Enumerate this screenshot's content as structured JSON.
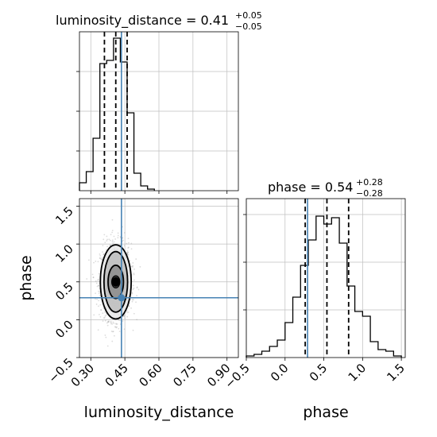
{
  "chart_data": [
    {
      "type": "histogram",
      "panel": "top-left",
      "parameter": "luminosity_distance",
      "title": {
        "text": "luminosity_distance = 0.41",
        "sup": "+0.05",
        "sub": "−0.05"
      },
      "xlim": [
        0.25,
        0.95
      ],
      "ylim": [
        0,
        1
      ],
      "x_ticks": [
        0.3,
        0.45,
        0.6,
        0.75,
        0.9
      ],
      "bin_edges": [
        0.25,
        0.28,
        0.31,
        0.34,
        0.37,
        0.4,
        0.43,
        0.46,
        0.49,
        0.52,
        0.55,
        0.58
      ],
      "counts": [
        0.05,
        0.12,
        0.33,
        0.8,
        0.82,
        0.96,
        0.81,
        0.49,
        0.11,
        0.03,
        0.01
      ],
      "quantile_lines": [
        0.36,
        0.41,
        0.46
      ],
      "truth": 0.435,
      "grid": true
    },
    {
      "type": "histogram",
      "panel": "bottom-right",
      "parameter": "phase",
      "title": {
        "text": "phase = 0.54",
        "sup": "+0.28",
        "sub": "−0.28"
      },
      "xlim": [
        -0.5,
        1.55
      ],
      "ylim": [
        0,
        1
      ],
      "x_ticks": [
        -0.5,
        0.0,
        0.5,
        1.0,
        1.5
      ],
      "x_tick_labels": [
        "−0.5",
        "0.0",
        "0.5",
        "1.0",
        "1.5"
      ],
      "xlabel": "phase",
      "bin_edges": [
        -0.5,
        -0.4,
        -0.3,
        -0.2,
        -0.1,
        0.0,
        0.1,
        0.2,
        0.3,
        0.4,
        0.5,
        0.6,
        0.7,
        0.8,
        0.9,
        1.0,
        1.1,
        1.2,
        1.3,
        1.4,
        1.5
      ],
      "counts": [
        0.01,
        0.02,
        0.04,
        0.07,
        0.11,
        0.22,
        0.38,
        0.58,
        0.74,
        0.89,
        0.84,
        0.88,
        0.72,
        0.45,
        0.29,
        0.26,
        0.1,
        0.05,
        0.04,
        0.01
      ],
      "quantile_lines": [
        0.26,
        0.54,
        0.82
      ],
      "truth": 0.29,
      "grid": true
    },
    {
      "type": "scatter",
      "panel": "bottom-left",
      "subtype": "2d-density-contour",
      "xlim": [
        0.25,
        0.95
      ],
      "ylim": [
        -0.5,
        1.6
      ],
      "x_ticks": [
        0.3,
        0.45,
        0.6,
        0.75,
        0.9
      ],
      "x_tick_labels": [
        "0.30",
        "0.45",
        "0.60",
        "0.75",
        "0.90"
      ],
      "y_ticks": [
        -0.5,
        0.0,
        0.5,
        1.0,
        1.5
      ],
      "y_tick_labels": [
        "−0.5",
        "0.0",
        "0.5",
        "1.0",
        "1.5"
      ],
      "xlabel": "luminosity_distance",
      "ylabel": "phase",
      "center": [
        0.41,
        0.5
      ],
      "contour_sigmas_x": [
        0.018,
        0.034,
        0.052,
        0.068
      ],
      "contour_sigmas_y": [
        0.08,
        0.22,
        0.4,
        0.49
      ],
      "truth": [
        0.435,
        0.29
      ],
      "grid": true
    }
  ],
  "colors": {
    "truth": "#4682b4",
    "line": "#000000",
    "grid": "#bfbfbf"
  }
}
